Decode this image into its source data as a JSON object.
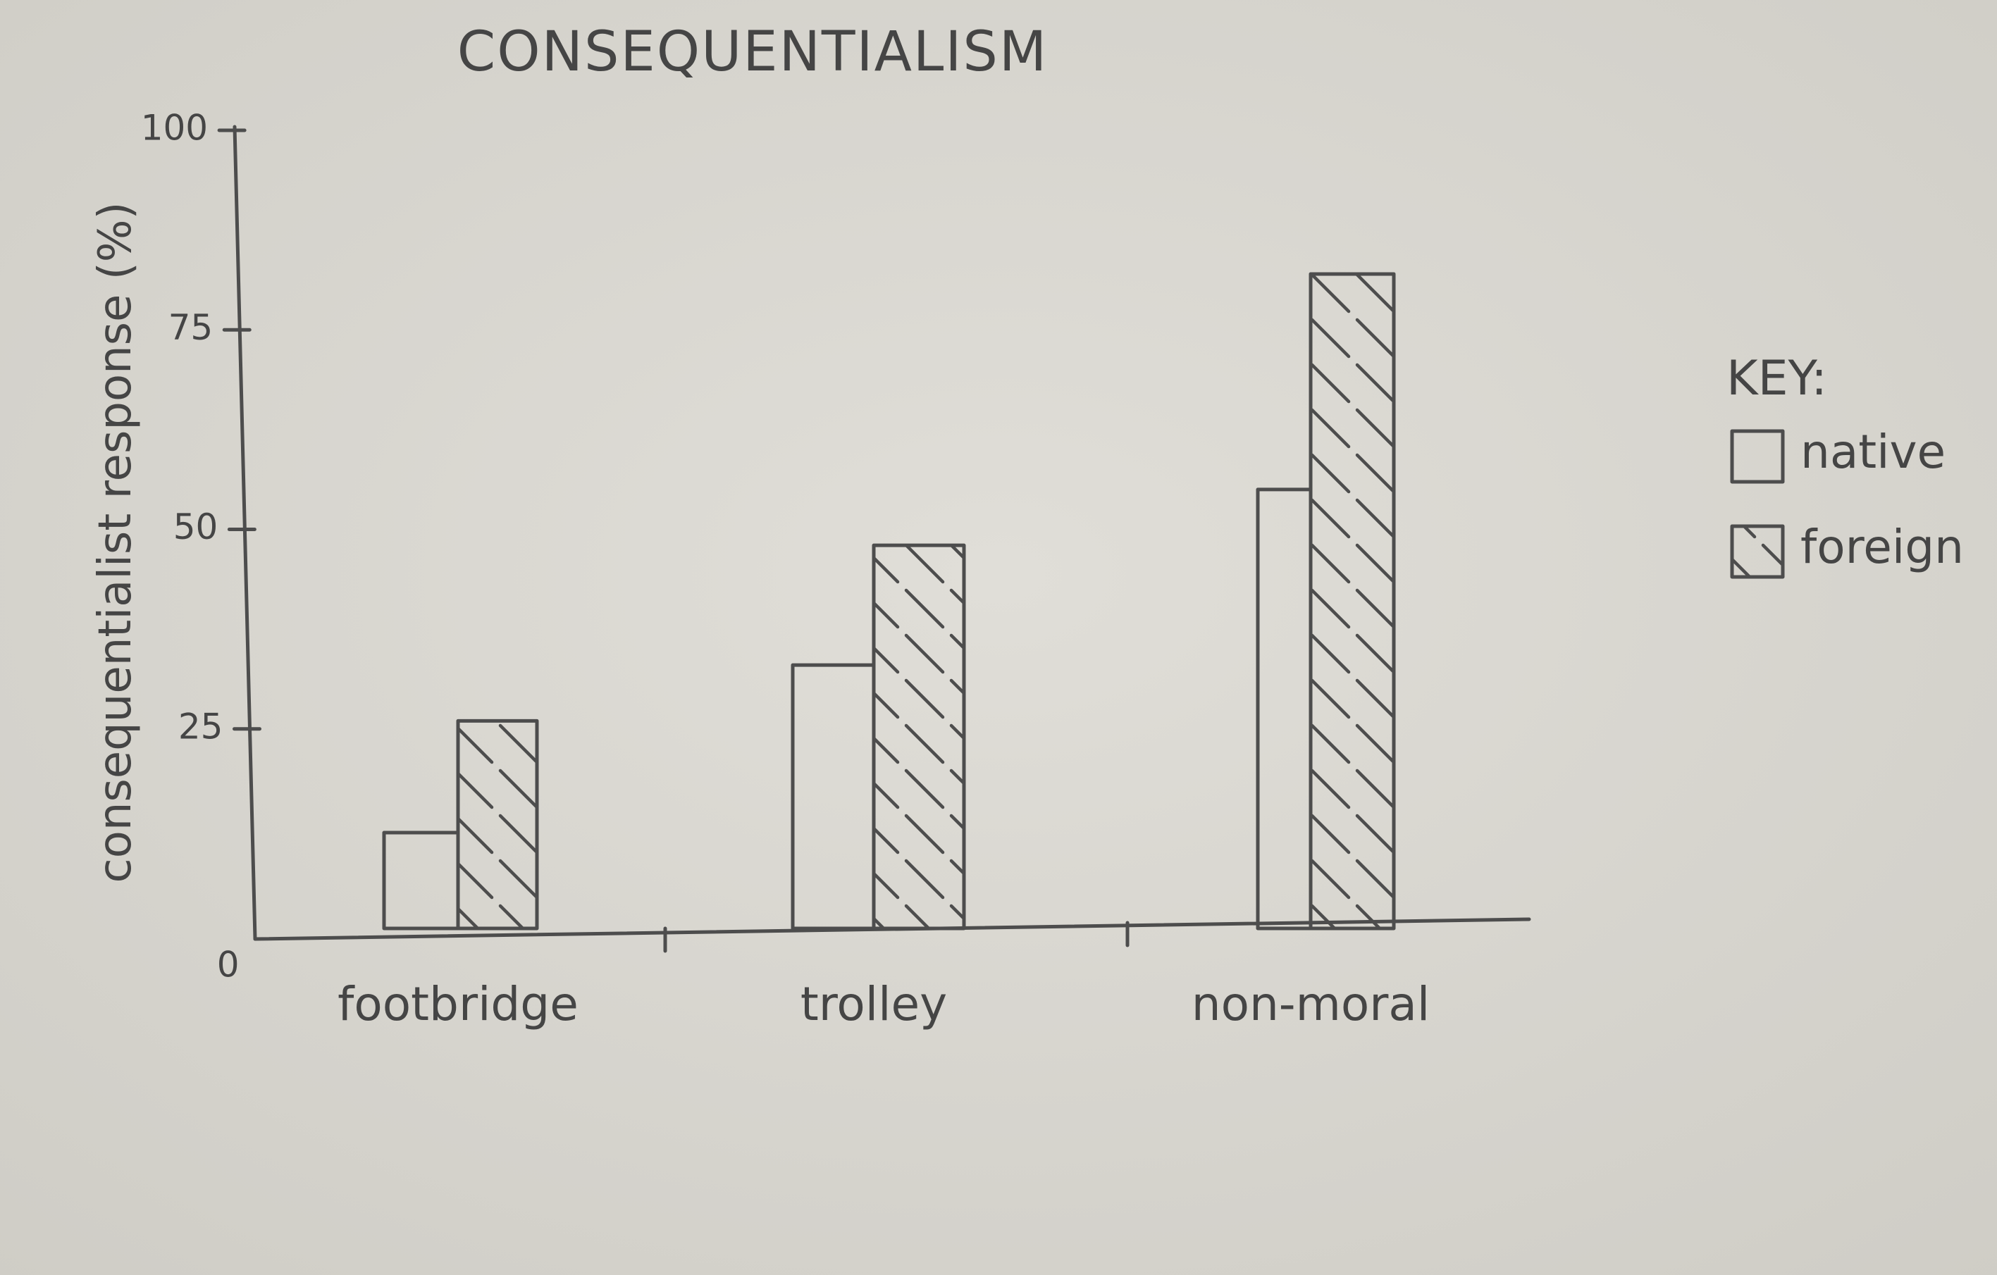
{
  "chart_data": {
    "type": "bar",
    "title": "CONSEQUENTIALISM",
    "ylabel": "consequentialist response (%)",
    "xlabel": "",
    "categories": [
      "footbridge",
      "trolley",
      "non-moral"
    ],
    "series": [
      {
        "name": "native",
        "values": [
          12,
          33,
          55
        ],
        "pattern": "none"
      },
      {
        "name": "foreign",
        "values": [
          26,
          48,
          82
        ],
        "pattern": "hatch"
      }
    ],
    "ylim": [
      0,
      100
    ],
    "yticks": [
      {
        "value": 0,
        "label": "0"
      },
      {
        "value": 25,
        "label": "25"
      },
      {
        "value": 50,
        "label": "50"
      },
      {
        "value": 75,
        "label": "75"
      },
      {
        "value": 100,
        "label": "100"
      }
    ],
    "legend": {
      "title": "KEY:",
      "placement": "right"
    },
    "grid": false,
    "colors": {
      "paper": "#d9d7d1",
      "pencil": "#4d4d4d"
    }
  }
}
